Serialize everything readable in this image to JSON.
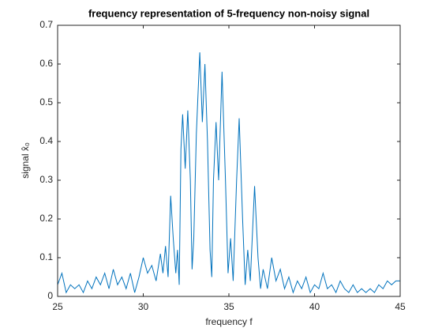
{
  "chart_data": {
    "type": "line",
    "title": "frequency representation of 5-frequency non-noisy signal",
    "xlabel": "frequency f",
    "ylabel": "signal x̂₀",
    "xlim": [
      25,
      45
    ],
    "xticks": [
      25,
      30,
      35,
      40,
      45
    ],
    "ylim": [
      0,
      0.7
    ],
    "yticks": [
      0,
      0.1,
      0.2,
      0.3,
      0.4,
      0.5,
      0.6,
      0.7
    ],
    "grid": false,
    "x": [
      25,
      25.25,
      25.5,
      25.75,
      26,
      26.25,
      26.5,
      26.75,
      27,
      27.25,
      27.5,
      27.75,
      28,
      28.25,
      28.5,
      28.75,
      29,
      29.25,
      29.5,
      29.75,
      30,
      30.25,
      30.5,
      30.75,
      31,
      31.15,
      31.3,
      31.45,
      31.6,
      31.75,
      31.9,
      32,
      32.1,
      32.2,
      32.3,
      32.45,
      32.6,
      32.75,
      32.85,
      32.95,
      33.1,
      33.3,
      33.45,
      33.6,
      33.75,
      33.9,
      34,
      34.1,
      34.25,
      34.4,
      34.6,
      34.8,
      34.95,
      35.1,
      35.25,
      35.45,
      35.6,
      35.8,
      35.95,
      36.1,
      36.25,
      36.5,
      36.7,
      36.85,
      37,
      37.25,
      37.5,
      37.75,
      38,
      38.25,
      38.5,
      38.75,
      39,
      39.25,
      39.5,
      39.75,
      40,
      40.25,
      40.5,
      40.75,
      41,
      41.25,
      41.5,
      41.75,
      42,
      42.25,
      42.5,
      42.75,
      43,
      43.25,
      43.5,
      43.75,
      44,
      44.25,
      44.5,
      44.75,
      45
    ],
    "series": [
      {
        "color": "#0072bd",
        "values": [
          0.03,
          0.06,
          0.01,
          0.03,
          0.02,
          0.03,
          0.01,
          0.04,
          0.02,
          0.05,
          0.03,
          0.06,
          0.02,
          0.07,
          0.03,
          0.05,
          0.02,
          0.06,
          0.01,
          0.05,
          0.1,
          0.06,
          0.08,
          0.04,
          0.11,
          0.06,
          0.13,
          0.05,
          0.26,
          0.15,
          0.06,
          0.12,
          0.03,
          0.38,
          0.47,
          0.33,
          0.48,
          0.3,
          0.07,
          0.15,
          0.42,
          0.63,
          0.45,
          0.6,
          0.4,
          0.12,
          0.05,
          0.3,
          0.45,
          0.3,
          0.58,
          0.3,
          0.06,
          0.15,
          0.04,
          0.3,
          0.46,
          0.2,
          0.03,
          0.12,
          0.04,
          0.285,
          0.1,
          0.02,
          0.07,
          0.02,
          0.1,
          0.04,
          0.07,
          0.02,
          0.05,
          0.01,
          0.04,
          0.02,
          0.05,
          0.01,
          0.03,
          0.02,
          0.06,
          0.02,
          0.03,
          0.01,
          0.04,
          0.02,
          0.01,
          0.03,
          0.01,
          0.02,
          0.01,
          0.02,
          0.01,
          0.03,
          0.02,
          0.04,
          0.03,
          0.04,
          0.04
        ]
      }
    ]
  }
}
